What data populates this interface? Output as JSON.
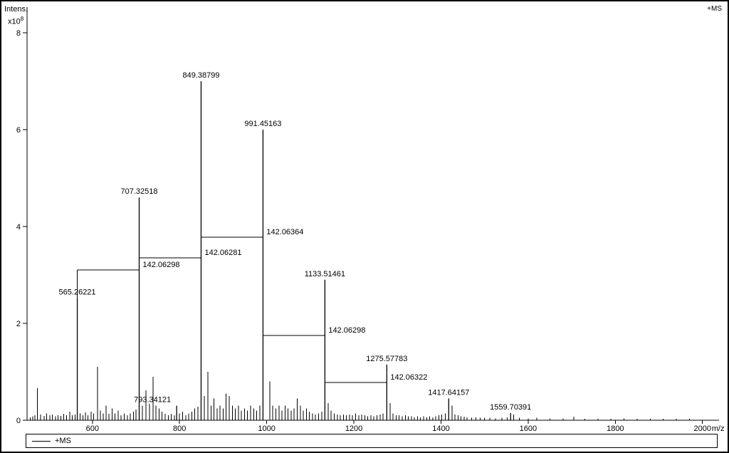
{
  "figure": {
    "top_right_label": "+MS",
    "y_axis": {
      "title": "Intens.",
      "scale_base": "x10",
      "scale_exp": "8"
    },
    "x_axis": {
      "unit": "m/z"
    },
    "legend": {
      "label": "+MS"
    }
  },
  "chart_data": {
    "type": "bar",
    "subtype": "mass-spectrum-stick",
    "title": "",
    "xlabel": "m/z",
    "ylabel": "Intens. x10^8",
    "xlim": [
      450,
      2038
    ],
    "ylim": [
      0,
      8
    ],
    "x_ticks": [
      600,
      800,
      1000,
      1200,
      1400,
      1600,
      1800,
      2000
    ],
    "y_ticks": [
      0,
      2,
      4,
      6,
      8
    ],
    "grid": false,
    "legend_position": "bottom",
    "labeled_peaks": [
      {
        "mz": 565.26221,
        "intensity": 2.52,
        "label": "565.26221"
      },
      {
        "mz": 707.32518,
        "intensity": 4.6,
        "label": "707.32518"
      },
      {
        "mz": 793.34121,
        "intensity": 0.3,
        "label": "793.34121",
        "label_dx": -34
      },
      {
        "mz": 849.38799,
        "intensity": 7.0,
        "label": "849.38799"
      },
      {
        "mz": 991.45163,
        "intensity": 6.0,
        "label": "991.45163"
      },
      {
        "mz": 1133.51461,
        "intensity": 2.9,
        "label": "1133.51461"
      },
      {
        "mz": 1275.57783,
        "intensity": 1.15,
        "label": "1275.57783"
      },
      {
        "mz": 1417.64157,
        "intensity": 0.45,
        "label": "1417.64157"
      },
      {
        "mz": 1559.70391,
        "intensity": 0.15,
        "label": "1559.70391"
      }
    ],
    "delta_annotations": [
      {
        "from": 565.26221,
        "to": 707.32518,
        "level": 3.1,
        "label": "142.06298"
      },
      {
        "from": 707.32518,
        "to": 849.38799,
        "level": 3.35,
        "label": "142.06281"
      },
      {
        "from": 849.38799,
        "to": 991.45163,
        "level": 3.78,
        "label": "142.06364"
      },
      {
        "from": 991.45163,
        "to": 1133.51461,
        "level": 1.75,
        "label": "142.06298"
      },
      {
        "from": 1133.51461,
        "to": 1275.57783,
        "level": 0.78,
        "label": "142.06322"
      }
    ],
    "minor_peaks": [
      [
        457,
        0.06
      ],
      [
        463,
        0.08
      ],
      [
        468,
        0.1
      ],
      [
        474,
        0.66
      ],
      [
        481,
        0.12
      ],
      [
        489,
        0.09
      ],
      [
        495,
        0.14
      ],
      [
        502,
        0.1
      ],
      [
        508,
        0.12
      ],
      [
        515,
        0.08
      ],
      [
        521,
        0.1
      ],
      [
        528,
        0.09
      ],
      [
        534,
        0.13
      ],
      [
        541,
        0.1
      ],
      [
        548,
        0.18
      ],
      [
        554,
        0.1
      ],
      [
        560,
        0.12
      ],
      [
        572,
        0.14
      ],
      [
        578,
        0.1
      ],
      [
        584,
        0.16
      ],
      [
        590,
        0.1
      ],
      [
        597,
        0.18
      ],
      [
        603,
        0.14
      ],
      [
        612,
        1.1
      ],
      [
        618,
        0.2
      ],
      [
        625,
        0.14
      ],
      [
        631,
        0.3
      ],
      [
        638,
        0.13
      ],
      [
        645,
        0.24
      ],
      [
        652,
        0.14
      ],
      [
        659,
        0.2
      ],
      [
        666,
        0.1
      ],
      [
        673,
        0.14
      ],
      [
        680,
        0.1
      ],
      [
        687,
        0.14
      ],
      [
        694,
        0.18
      ],
      [
        700,
        0.22
      ],
      [
        715,
        0.3
      ],
      [
        723,
        0.62
      ],
      [
        731,
        0.34
      ],
      [
        739,
        0.9
      ],
      [
        746,
        0.3
      ],
      [
        753,
        0.24
      ],
      [
        760,
        0.18
      ],
      [
        767,
        0.13
      ],
      [
        774,
        0.1
      ],
      [
        781,
        0.13
      ],
      [
        788,
        0.1
      ],
      [
        800,
        0.14
      ],
      [
        807,
        0.18
      ],
      [
        814,
        0.1
      ],
      [
        821,
        0.13
      ],
      [
        828,
        0.18
      ],
      [
        835,
        0.24
      ],
      [
        842,
        0.28
      ],
      [
        857,
        0.5
      ],
      [
        865,
        1.0
      ],
      [
        872,
        0.3
      ],
      [
        879,
        0.45
      ],
      [
        886,
        0.24
      ],
      [
        893,
        0.3
      ],
      [
        900,
        0.24
      ],
      [
        907,
        0.55
      ],
      [
        914,
        0.5
      ],
      [
        921,
        0.3
      ],
      [
        928,
        0.24
      ],
      [
        935,
        0.3
      ],
      [
        942,
        0.2
      ],
      [
        949,
        0.24
      ],
      [
        956,
        0.2
      ],
      [
        963,
        0.3
      ],
      [
        970,
        0.24
      ],
      [
        977,
        0.2
      ],
      [
        984,
        0.3
      ],
      [
        1007,
        0.8
      ],
      [
        1014,
        0.3
      ],
      [
        1021,
        0.24
      ],
      [
        1028,
        0.3
      ],
      [
        1035,
        0.2
      ],
      [
        1042,
        0.3
      ],
      [
        1049,
        0.24
      ],
      [
        1056,
        0.2
      ],
      [
        1063,
        0.24
      ],
      [
        1070,
        0.45
      ],
      [
        1077,
        0.3
      ],
      [
        1084,
        0.2
      ],
      [
        1091,
        0.24
      ],
      [
        1098,
        0.18
      ],
      [
        1105,
        0.14
      ],
      [
        1112,
        0.12
      ],
      [
        1119,
        0.14
      ],
      [
        1126,
        0.18
      ],
      [
        1141,
        0.35
      ],
      [
        1148,
        0.2
      ],
      [
        1155,
        0.14
      ],
      [
        1162,
        0.12
      ],
      [
        1169,
        0.1
      ],
      [
        1176,
        0.12
      ],
      [
        1183,
        0.1
      ],
      [
        1190,
        0.12
      ],
      [
        1197,
        0.1
      ],
      [
        1204,
        0.14
      ],
      [
        1211,
        0.1
      ],
      [
        1218,
        0.12
      ],
      [
        1225,
        0.1
      ],
      [
        1232,
        0.08
      ],
      [
        1239,
        0.1
      ],
      [
        1246,
        0.08
      ],
      [
        1253,
        0.1
      ],
      [
        1260,
        0.12
      ],
      [
        1267,
        0.14
      ],
      [
        1283,
        0.35
      ],
      [
        1290,
        0.14
      ],
      [
        1297,
        0.1
      ],
      [
        1304,
        0.1
      ],
      [
        1311,
        0.08
      ],
      [
        1318,
        0.1
      ],
      [
        1325,
        0.08
      ],
      [
        1332,
        0.08
      ],
      [
        1339,
        0.06
      ],
      [
        1346,
        0.08
      ],
      [
        1353,
        0.06
      ],
      [
        1360,
        0.08
      ],
      [
        1367,
        0.06
      ],
      [
        1374,
        0.08
      ],
      [
        1381,
        0.06
      ],
      [
        1388,
        0.08
      ],
      [
        1395,
        0.1
      ],
      [
        1402,
        0.12
      ],
      [
        1410,
        0.14
      ],
      [
        1425,
        0.3
      ],
      [
        1432,
        0.12
      ],
      [
        1439,
        0.1
      ],
      [
        1446,
        0.08
      ],
      [
        1453,
        0.07
      ],
      [
        1460,
        0.06
      ],
      [
        1470,
        0.05
      ],
      [
        1480,
        0.06
      ],
      [
        1490,
        0.05
      ],
      [
        1500,
        0.05
      ],
      [
        1512,
        0.05
      ],
      [
        1525,
        0.04
      ],
      [
        1540,
        0.05
      ],
      [
        1552,
        0.06
      ],
      [
        1567,
        0.12
      ],
      [
        1580,
        0.05
      ],
      [
        1600,
        0.04
      ],
      [
        1620,
        0.05
      ],
      [
        1650,
        0.04
      ],
      [
        1680,
        0.04
      ],
      [
        1705,
        0.07
      ],
      [
        1730,
        0.03
      ],
      [
        1760,
        0.03
      ],
      [
        1790,
        0.03
      ],
      [
        1820,
        0.04
      ],
      [
        1850,
        0.03
      ],
      [
        1880,
        0.03
      ],
      [
        1910,
        0.03
      ],
      [
        1940,
        0.03
      ],
      [
        1970,
        0.03
      ]
    ]
  }
}
